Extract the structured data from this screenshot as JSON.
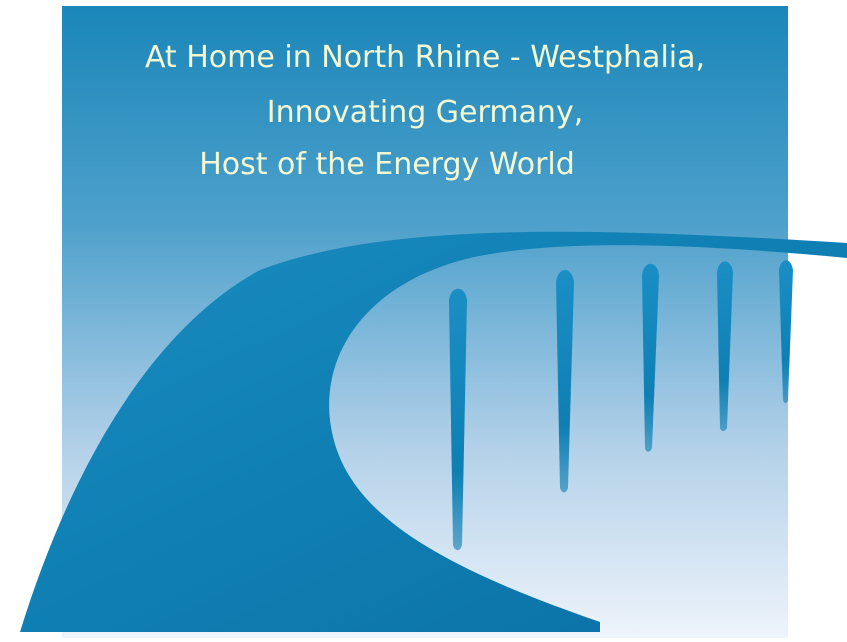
{
  "tagline": {
    "line1": "At Home in North Rhine - Westphalia,",
    "line2": "Innovating Germany,",
    "line3": "Host of the Energy World"
  },
  "colors": {
    "sky_top": "#1e87b9",
    "sky_bottom": "#ecf3fa",
    "wave": "#0f7fb3",
    "text": "#f4f8d2"
  }
}
